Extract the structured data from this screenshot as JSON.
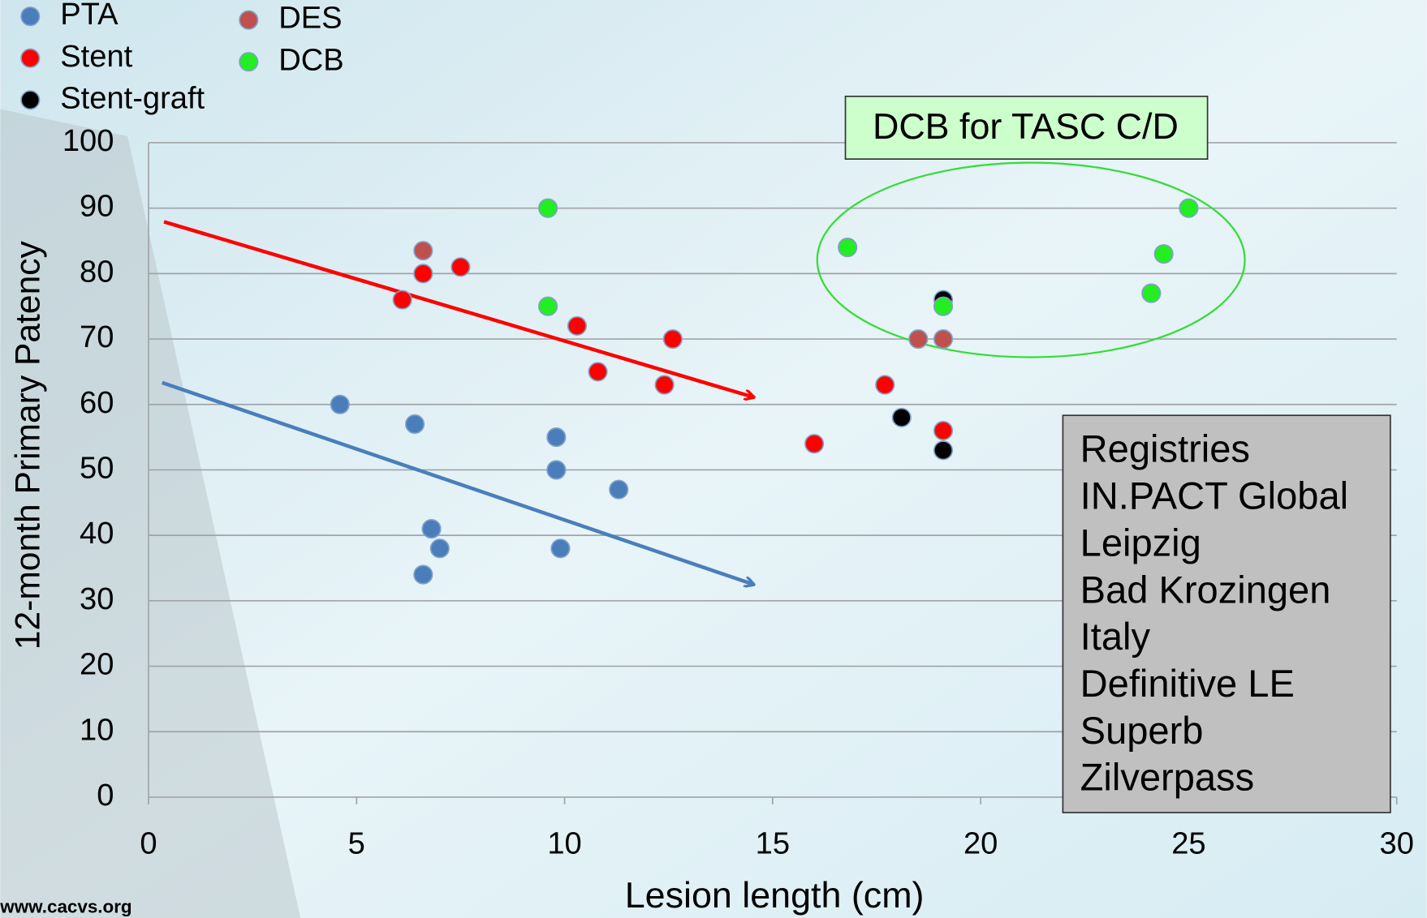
{
  "chart_data": {
    "type": "scatter",
    "xlabel": "Lesion length (cm)",
    "ylabel": "12-month Primary Patency",
    "xlim": [
      0,
      30
    ],
    "ylim": [
      0,
      100
    ],
    "xticks": [
      0,
      5,
      10,
      15,
      20,
      25,
      30
    ],
    "yticks": [
      0,
      10,
      20,
      30,
      40,
      50,
      60,
      70,
      80,
      90,
      100
    ],
    "grid": true,
    "series": [
      {
        "name": "PTA",
        "color": "#4a7ebb",
        "x": [
          4.6,
          6.4,
          6.8,
          7.0,
          6.6,
          9.8,
          9.8,
          9.9,
          11.3
        ],
        "values": [
          60,
          57,
          41,
          38,
          34,
          55,
          50,
          38,
          47
        ]
      },
      {
        "name": "Stent",
        "color": "#ff0000",
        "x": [
          6.1,
          6.6,
          7.5,
          10.3,
          10.8,
          12.6,
          12.4,
          16.0,
          17.7,
          19.1
        ],
        "values": [
          76,
          80,
          81,
          72,
          65,
          70,
          63,
          54,
          63,
          56
        ]
      },
      {
        "name": "Stent-graft",
        "color": "#000000",
        "x": [
          18.1,
          19.1,
          19.1
        ],
        "values": [
          58,
          53,
          76
        ]
      },
      {
        "name": "DES",
        "color": "#c0504d",
        "x": [
          6.6,
          18.5,
          19.1
        ],
        "values": [
          83.5,
          70,
          70
        ]
      },
      {
        "name": "DCB",
        "color": "#22ee22",
        "x": [
          9.6,
          9.6,
          16.8,
          19.1,
          24.1,
          24.4,
          25.0
        ],
        "values": [
          90,
          75,
          84,
          75,
          77,
          83,
          90
        ]
      }
    ],
    "annotation": "DCB for TASC C/D",
    "registries": {
      "title": "Registries",
      "items": [
        "IN.PACT Global",
        "Leipzig",
        "Bad Krozingen",
        "Italy",
        "Definitive LE",
        "Superb",
        "Zilverpass"
      ]
    }
  },
  "footer": "www.cacvs.org"
}
